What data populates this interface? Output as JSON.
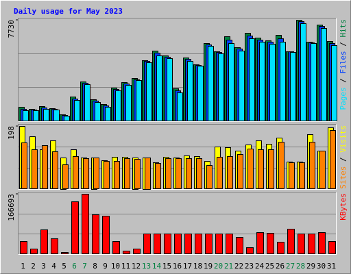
{
  "chart_data": {
    "type": "bar",
    "title": "Daily usage for May 2023",
    "categories": [
      "1",
      "2",
      "3",
      "4",
      "5",
      "6",
      "7",
      "8",
      "9",
      "10",
      "11",
      "12",
      "13",
      "14",
      "15",
      "16",
      "17",
      "18",
      "19",
      "20",
      "21",
      "22",
      "23",
      "24",
      "25",
      "26",
      "27",
      "28",
      "29",
      "30",
      "31"
    ],
    "category_colors": [
      "#000000",
      "#000000",
      "#000000",
      "#000000",
      "#000000",
      "#008040",
      "#008040",
      "#000000",
      "#000000",
      "#000000",
      "#000000",
      "#000000",
      "#008040",
      "#008040",
      "#000000",
      "#000000",
      "#000000",
      "#000000",
      "#000000",
      "#008040",
      "#008040",
      "#000000",
      "#000000",
      "#000000",
      "#000000",
      "#000000",
      "#008040",
      "#008040",
      "#000000",
      "#000000",
      "#000000"
    ],
    "legend_separator": " / ",
    "panels": [
      {
        "ylim": [
          0,
          7730
        ],
        "yticks": [
          7730
        ],
        "series": [
          {
            "name": "Hits",
            "color": "#008040",
            "values": [
              1045,
              890,
              1100,
              940,
              470,
              1830,
              2980,
              1620,
              1250,
              2510,
              2920,
              3240,
              4650,
              5380,
              5010,
              2450,
              4860,
              4330,
              5960,
              5330,
              6480,
              5640,
              6740,
              6370,
              6160,
              6580,
              5330,
              7730,
              6060,
              7370,
              6110
            ]
          },
          {
            "name": "Files",
            "color": "#0040ff",
            "values": [
              910,
              835,
              995,
              890,
              420,
              1700,
              2870,
              1515,
              1150,
              2400,
              2820,
              3160,
              4570,
              5200,
              4900,
              2300,
              4730,
              4280,
              5850,
              5250,
              6220,
              5510,
              6530,
              6210,
              6030,
              6320,
              5300,
              7600,
              6000,
              7240,
              5950
            ]
          },
          {
            "name": "Pages",
            "color": "#00e0ff",
            "values": [
              780,
              780,
              890,
              835,
              365,
              1565,
              2765,
              1410,
              1045,
              2295,
              2715,
              3080,
              4490,
              5010,
              4800,
              2140,
              4595,
              4230,
              5740,
              5170,
              5950,
              5375,
              6315,
              6055,
              5900,
              6055,
              5270,
              7465,
              5950,
              7100,
              5795
            ]
          }
        ]
      },
      {
        "ylim": [
          0,
          198
        ],
        "yticks": [
          198
        ],
        "series": [
          {
            "name": "Visits",
            "color": "#ffff00",
            "values": [
              198,
              166,
              125,
              153,
              99,
              125,
              97,
              99,
              90,
              101,
              101,
              99,
              99,
              82,
              101,
              97,
              105,
              103,
              88,
              133,
              131,
              120,
              140,
              153,
              142,
              161,
              84,
              84,
              172,
              120,
              194
            ]
          },
          {
            "name": "Sites",
            "color": "#ff8000",
            "values": [
              146,
              125,
              136,
              118,
              77,
              103,
              95,
              97,
              88,
              88,
              95,
              93,
              99,
              80,
              95,
              95,
              95,
              95,
              73,
              101,
              103,
              108,
              127,
              123,
              125,
              149,
              82,
              82,
              149,
              120,
              185
            ]
          }
        ]
      },
      {
        "ylim": [
          0,
          166693
        ],
        "yticks": [
          166693
        ],
        "series": [
          {
            "name": "KBytes",
            "color": "#ff0000",
            "values": [
              34500,
              13400,
              67100,
              42200,
              3800,
              145600,
              166693,
              109200,
              105400,
              34500,
              7700,
              13400,
              55600,
              55600,
              55600,
              55600,
              55600,
              55600,
              55600,
              55600,
              55600,
              46000,
              17200,
              59400,
              57500,
              32600,
              69000,
              55600,
              55600,
              59400,
              34500
            ]
          }
        ]
      }
    ]
  }
}
